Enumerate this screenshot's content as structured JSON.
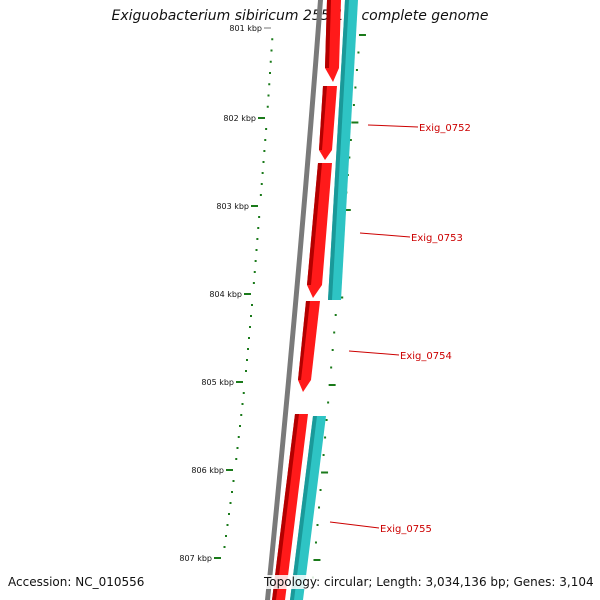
{
  "header": {
    "title": "Exiguobacterium sibiricum 255-15, complete genome"
  },
  "footer": {
    "accession": "Accession: NC_010556",
    "summary": "Topology: circular; Length: 3,034,136 bp; Genes: 3,104"
  },
  "scale": {
    "tick_labels": [
      "801 kbp",
      "802 kbp",
      "803 kbp",
      "804 kbp",
      "805 kbp",
      "806 kbp",
      "807 kbp"
    ]
  },
  "genes": [
    {
      "name": "Exig_0752",
      "color": "#ff0000"
    },
    {
      "name": "Exig_0753",
      "color": "#ff0000"
    },
    {
      "name": "Exig_0754",
      "color": "#ff0000"
    },
    {
      "name": "Exig_0755",
      "color": "#ff0000"
    }
  ],
  "colors": {
    "backbone": "#808080",
    "cds": "#ff0000",
    "second_track": "#33cccc",
    "ticks": "#1a7a1a",
    "gene_label": "#cc0000"
  }
}
